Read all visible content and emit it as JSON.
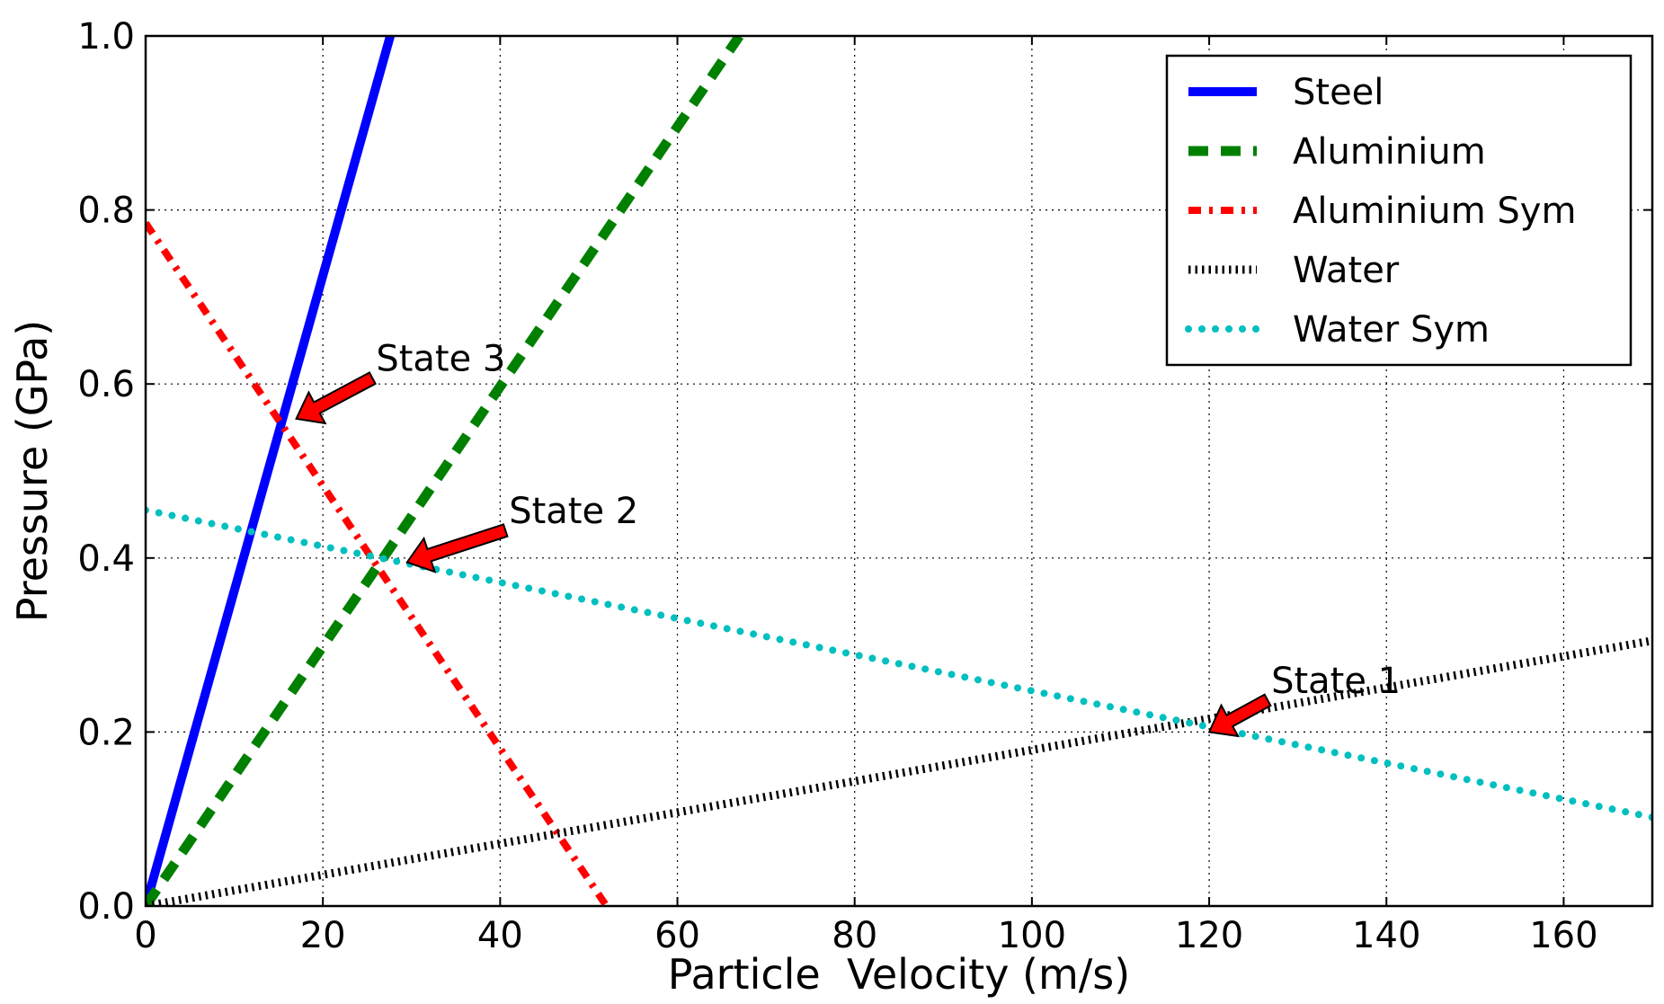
{
  "chart_data": {
    "type": "line",
    "xlabel": "Particle  Velocity (m/s)",
    "ylabel": "Pressure (GPa)",
    "xlim": [
      0,
      170
    ],
    "ylim": [
      0,
      1.0
    ],
    "xticks": [
      "0",
      "20",
      "40",
      "60",
      "80",
      "100",
      "120",
      "140",
      "160"
    ],
    "yticks": [
      "0.0",
      "0.2",
      "0.4",
      "0.6",
      "0.8",
      "1.0"
    ],
    "grid": true,
    "legend_position": "top-right",
    "series": [
      {
        "name": "Steel",
        "color": "#0000ff",
        "style": "solid",
        "x": [
          0,
          27.6
        ],
        "y": [
          0,
          1.0
        ]
      },
      {
        "name": "Aluminium",
        "color": "#008000",
        "style": "dashed",
        "x": [
          0,
          67
        ],
        "y": [
          0,
          1.0
        ]
      },
      {
        "name": "Aluminium Sym",
        "color": "#ff0000",
        "style": "dashdot",
        "x": [
          0,
          52
        ],
        "y": [
          0.785,
          0
        ]
      },
      {
        "name": "Water",
        "color": "#000000",
        "style": "hatched",
        "x": [
          0,
          170
        ],
        "y": [
          0,
          0.305
        ]
      },
      {
        "name": "Water Sym",
        "color": "#00bfbf",
        "style": "dotted",
        "x": [
          0,
          170
        ],
        "y": [
          0.455,
          0.102
        ]
      }
    ],
    "annotations": [
      {
        "text": "State 1",
        "point": [
          120,
          0.2
        ],
        "text_pos": [
          127,
          0.245
        ]
      },
      {
        "text": "State 2",
        "point": [
          29.5,
          0.395
        ],
        "text_pos": [
          41,
          0.44
        ]
      },
      {
        "text": "State 3",
        "point": [
          17,
          0.56
        ],
        "text_pos": [
          26,
          0.615
        ]
      }
    ]
  }
}
